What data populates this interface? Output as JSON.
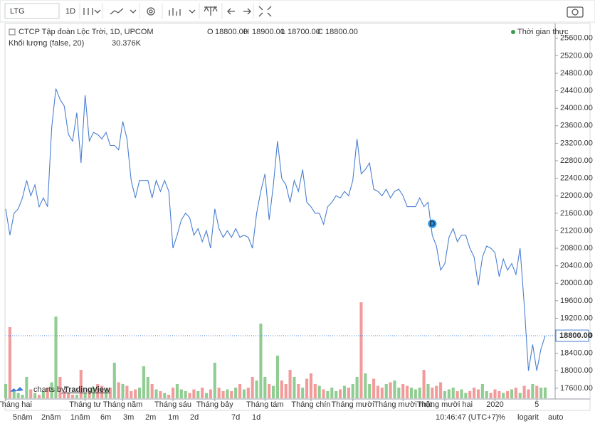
{
  "toolbar": {
    "symbol": "LTG",
    "interval": "1D"
  },
  "legend": {
    "title": "CTCP Tập đoàn Lộc Trời, 1D, UPCOM",
    "ohlc": [
      {
        "key": "O",
        "value": "18800.00"
      },
      {
        "key": "H",
        "value": "18900.00"
      },
      {
        "key": "L",
        "value": "18700.00"
      },
      {
        "key": "C",
        "value": "18800.00"
      }
    ],
    "volume_title": "Khối lượng (false, 20)",
    "realtime": "Thời gian thực"
  },
  "chart_data": {
    "type": "line",
    "series": [
      {
        "name": "LTG",
        "color": "#4a7fd1",
        "values": [
          21700,
          21100,
          21600,
          21700,
          21950,
          22350,
          22000,
          22250,
          21750,
          21950,
          21750,
          23550,
          24450,
          24200,
          24050,
          23400,
          23250,
          23900,
          22750,
          24300,
          23250,
          23450,
          23400,
          23300,
          23450,
          23150,
          23150,
          23050,
          23700,
          23300,
          22350,
          21950,
          22350,
          22350,
          22350,
          21950,
          22350,
          22100,
          22350,
          22100,
          20800,
          21100,
          21450,
          21600,
          21500,
          21100,
          21250,
          20950,
          21200,
          20800,
          21700,
          21250,
          21050,
          21200,
          21050,
          21250,
          21050,
          21100,
          21050,
          20800,
          21600,
          22100,
          22500,
          21450,
          22250,
          23250,
          22400,
          22250,
          21850,
          22350,
          22100,
          22600,
          21850,
          21750,
          21600,
          21600,
          21350,
          21750,
          21850,
          22000,
          21950,
          22100,
          22000,
          22350,
          23300,
          22500,
          22600,
          22750,
          22150,
          22100,
          22000,
          22150,
          21950,
          22100,
          22150,
          22000,
          21750,
          21750,
          21750,
          21950,
          21750,
          21850,
          21100,
          20850,
          20300,
          20450,
          21050,
          21250,
          20950,
          21100,
          21100,
          20800,
          20600,
          19950,
          20600,
          20850,
          20800,
          20700,
          20150,
          20550,
          20300,
          20450,
          20200,
          20800,
          19500,
          18000,
          18600,
          18000,
          18500,
          18800
        ]
      }
    ],
    "volume": {
      "up_color": "#7cc47f",
      "down_color": "#f08a8a",
      "ylim": [
        0,
        300
      ],
      "value_label": "30.376K",
      "values": [
        40,
        200,
        20,
        15,
        10,
        60,
        25,
        15,
        10,
        20,
        30,
        45,
        230,
        60,
        20,
        15,
        10,
        10,
        80,
        15,
        20,
        30,
        40,
        35,
        25,
        30,
        100,
        45,
        40,
        35,
        20,
        25,
        30,
        90,
        60,
        40,
        25,
        20,
        15,
        10,
        30,
        40,
        25,
        20,
        15,
        25,
        20,
        30,
        15,
        25,
        100,
        30,
        20,
        25,
        20,
        30,
        40,
        25,
        30,
        60,
        50,
        210,
        60,
        40,
        35,
        120,
        50,
        40,
        80,
        60,
        40,
        30,
        55,
        70,
        40,
        35,
        25,
        20,
        30,
        20,
        25,
        35,
        30,
        40,
        60,
        270,
        70,
        40,
        55,
        35,
        30,
        40,
        45,
        50,
        30,
        40,
        35,
        30,
        25,
        30,
        80,
        40,
        30,
        35,
        45,
        20,
        25,
        30,
        20,
        25,
        15,
        20,
        30,
        25,
        40,
        20,
        15,
        25,
        20,
        15,
        20,
        25,
        30,
        15,
        35,
        25,
        40,
        35,
        30,
        30.376
      ]
    },
    "last_price_label": "18800.00",
    "marker": "D",
    "ylim": [
      17370,
      25890
    ],
    "yticks": [
      {
        "value": 17600,
        "label": "17600.00"
      },
      {
        "value": 18000,
        "label": "18000.00"
      },
      {
        "value": 18400,
        "label": "18400.00"
      },
      {
        "value": 18800,
        "label": "18800.00"
      },
      {
        "value": 19200,
        "label": "19200.00"
      },
      {
        "value": 19600,
        "label": "19600.00"
      },
      {
        "value": 20000,
        "label": "20000.00"
      },
      {
        "value": 20400,
        "label": "20400.00"
      },
      {
        "value": 20800,
        "label": "20800.00"
      },
      {
        "value": 21200,
        "label": "21200.00"
      },
      {
        "value": 21600,
        "label": "21600.00"
      },
      {
        "value": 22000,
        "label": "22000.00"
      },
      {
        "value": 22400,
        "label": "22400.00"
      },
      {
        "value": 22800,
        "label": "22800.00"
      },
      {
        "value": 23200,
        "label": "23200.00"
      },
      {
        "value": 23600,
        "label": "23600.00"
      },
      {
        "value": 24000,
        "label": "24000.00"
      },
      {
        "value": 24400,
        "label": "24400.00"
      },
      {
        "value": 24800,
        "label": "24800.00"
      },
      {
        "value": 25200,
        "label": "25200.00"
      },
      {
        "value": 25600,
        "label": "25600.00"
      }
    ],
    "xlim": [
      0,
      129
    ],
    "xticks": [
      {
        "value": 0,
        "label": "Tháng hai"
      },
      {
        "value": 19,
        "label": "Tháng tư"
      },
      {
        "value": 28,
        "label": "Tháng năm"
      },
      {
        "value": 40,
        "label": "Tháng sáu"
      },
      {
        "value": 50,
        "label": "Tháng bảy"
      },
      {
        "value": 62,
        "label": "Tháng tám"
      },
      {
        "value": 73,
        "label": "Tháng chín"
      },
      {
        "value": 83,
        "label": "Tháng mười"
      },
      {
        "value": 95,
        "label": "Tháng mười một"
      },
      {
        "value": 105,
        "label": "Tháng mười hai"
      },
      {
        "value": 117,
        "label": "2020"
      },
      {
        "value": 127,
        "label": "5"
      }
    ]
  },
  "branding": {
    "prefix": "charts by",
    "name": "TradingView"
  },
  "bottom_bar": {
    "ranges": [
      "5năm",
      "2năm",
      "1năm",
      "6m",
      "3m",
      "2m",
      "1m",
      "2d",
      "7d",
      "1d"
    ],
    "time": "10:46:47 (UTC+7)",
    "percent": "%",
    "log": "logarit",
    "auto": "auto"
  }
}
